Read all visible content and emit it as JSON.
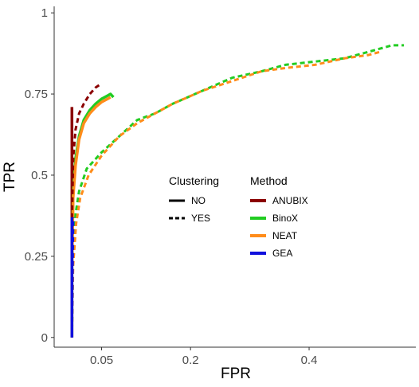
{
  "chart_data": {
    "type": "line",
    "xlabel": "FPR",
    "ylabel": "TPR",
    "x_ticks": [
      {
        "value": 0.05,
        "label": "0.05"
      },
      {
        "value": 0.2,
        "label": "0.2"
      },
      {
        "value": 0.4,
        "label": "0.4"
      }
    ],
    "y_ticks": [
      {
        "value": 0,
        "label": "0"
      },
      {
        "value": 0.25,
        "label": "0.25"
      },
      {
        "value": 0.5,
        "label": "0.5"
      },
      {
        "value": 0.75,
        "label": "0.75"
      },
      {
        "value": 1,
        "label": "1"
      }
    ],
    "xlim": [
      -0.03,
      0.58
    ],
    "ylim": [
      -0.03,
      1.02
    ],
    "grid": false,
    "legend": {
      "placement": "center",
      "linetype_title": "Clustering",
      "linetype_entries": [
        {
          "label": "NO",
          "dash": "solid"
        },
        {
          "label": "YES",
          "dash": "dashed"
        }
      ],
      "color_title": "Method",
      "color_entries": [
        {
          "label": "ANUBIX",
          "color": "#8B0000"
        },
        {
          "label": "BinoX",
          "color": "#22CC22"
        },
        {
          "label": "NEAT",
          "color": "#FF8C1A"
        },
        {
          "label": "GEA",
          "color": "#1010DD"
        }
      ]
    },
    "series": [
      {
        "method": "ANUBIX",
        "clustering": "NO",
        "color": "#8B0000",
        "points": [
          [
            0.0,
            0.0
          ],
          [
            0.0,
            0.71
          ]
        ]
      },
      {
        "method": "BinoX",
        "clustering": "YES",
        "color": "#22CC22",
        "points": [
          [
            0.0,
            0.0
          ],
          [
            0.002,
            0.25
          ],
          [
            0.006,
            0.38
          ],
          [
            0.012,
            0.45
          ],
          [
            0.025,
            0.52
          ],
          [
            0.05,
            0.57
          ],
          [
            0.08,
            0.62
          ],
          [
            0.11,
            0.67
          ],
          [
            0.14,
            0.69
          ],
          [
            0.17,
            0.72
          ],
          [
            0.22,
            0.76
          ],
          [
            0.27,
            0.8
          ],
          [
            0.32,
            0.82
          ],
          [
            0.36,
            0.84
          ],
          [
            0.41,
            0.85
          ],
          [
            0.46,
            0.86
          ],
          [
            0.5,
            0.88
          ],
          [
            0.54,
            0.9
          ],
          [
            0.56,
            0.9
          ]
        ]
      },
      {
        "method": "NEAT",
        "clustering": "YES",
        "color": "#FF8C1A",
        "points": [
          [
            0.0,
            0.0
          ],
          [
            0.002,
            0.22
          ],
          [
            0.007,
            0.35
          ],
          [
            0.014,
            0.43
          ],
          [
            0.028,
            0.5
          ],
          [
            0.05,
            0.56
          ],
          [
            0.08,
            0.62
          ],
          [
            0.11,
            0.66
          ],
          [
            0.14,
            0.69
          ],
          [
            0.17,
            0.72
          ],
          [
            0.22,
            0.76
          ],
          [
            0.27,
            0.79
          ],
          [
            0.32,
            0.82
          ],
          [
            0.36,
            0.83
          ],
          [
            0.41,
            0.84
          ],
          [
            0.46,
            0.86
          ],
          [
            0.5,
            0.87
          ],
          [
            0.52,
            0.88
          ]
        ]
      },
      {
        "method": "BinoX",
        "clustering": "NO",
        "color": "#22CC22",
        "points": [
          [
            0.0,
            0.0
          ],
          [
            0.0,
            0.22
          ],
          [
            0.002,
            0.45
          ],
          [
            0.006,
            0.55
          ],
          [
            0.012,
            0.62
          ],
          [
            0.02,
            0.67
          ],
          [
            0.03,
            0.7
          ],
          [
            0.04,
            0.72
          ],
          [
            0.05,
            0.735
          ],
          [
            0.06,
            0.745
          ],
          [
            0.065,
            0.75
          ],
          [
            0.07,
            0.74
          ]
        ]
      },
      {
        "method": "NEAT",
        "clustering": "NO",
        "color": "#FF8C1A",
        "points": [
          [
            0.0,
            0.0
          ],
          [
            0.0,
            0.21
          ],
          [
            0.002,
            0.43
          ],
          [
            0.006,
            0.53
          ],
          [
            0.012,
            0.61
          ],
          [
            0.02,
            0.66
          ],
          [
            0.03,
            0.69
          ],
          [
            0.04,
            0.71
          ],
          [
            0.05,
            0.725
          ],
          [
            0.06,
            0.735
          ],
          [
            0.065,
            0.74
          ]
        ]
      },
      {
        "method": "ANUBIX",
        "clustering": "YES",
        "color": "#8B0000",
        "points": [
          [
            0.0,
            0.0
          ],
          [
            0.0,
            0.36
          ],
          [
            0.002,
            0.55
          ],
          [
            0.006,
            0.64
          ],
          [
            0.012,
            0.69
          ],
          [
            0.02,
            0.72
          ],
          [
            0.03,
            0.75
          ],
          [
            0.04,
            0.77
          ],
          [
            0.048,
            0.78
          ]
        ]
      },
      {
        "method": "GEA",
        "clustering": "NO",
        "color": "#1010DD",
        "points": [
          [
            0.0,
            0.0
          ],
          [
            0.0,
            0.37
          ]
        ]
      },
      {
        "method": "GEA",
        "clustering": "YES",
        "color": "#1010DD",
        "points": [
          [
            0.0,
            0.0
          ],
          [
            0.002,
            0.37
          ]
        ]
      }
    ]
  }
}
